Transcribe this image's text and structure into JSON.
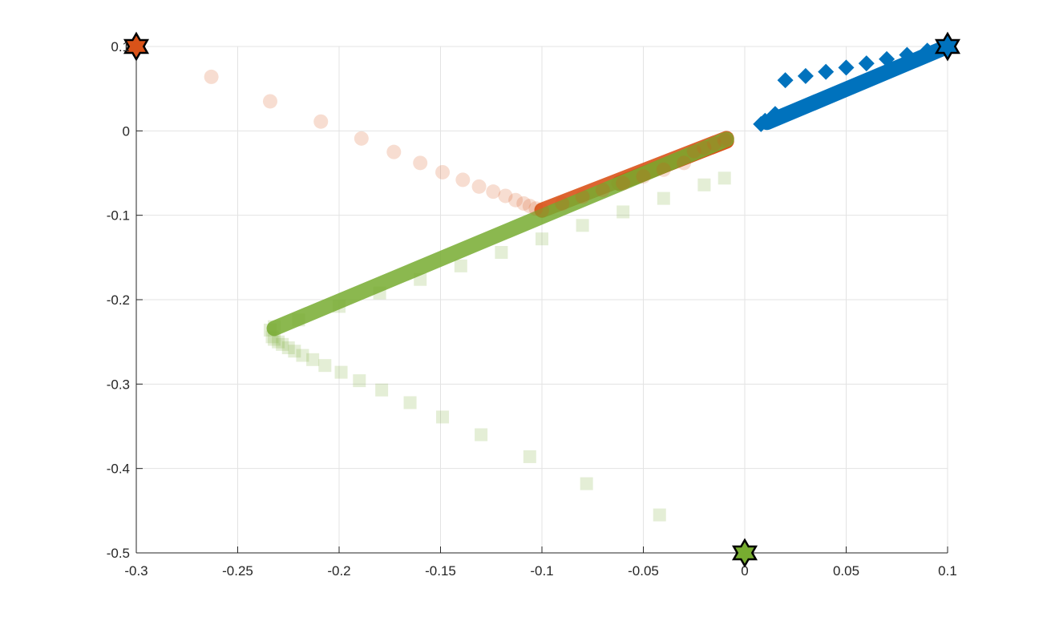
{
  "chart_data": {
    "type": "scatter",
    "title": "",
    "xlabel": "",
    "ylabel": "",
    "xlim": [
      -0.3,
      0.1
    ],
    "ylim": [
      -0.5,
      0.1
    ],
    "grid": true,
    "xticks": [
      -0.3,
      -0.25,
      -0.2,
      -0.15,
      -0.1,
      -0.05,
      0,
      0.05,
      0.1
    ],
    "yticks": [
      -0.5,
      -0.4,
      -0.3,
      -0.2,
      -0.1,
      0,
      0.1
    ],
    "xtick_labels": [
      "-0.3",
      "-0.25",
      "-0.2",
      "-0.15",
      "-0.1",
      "-0.05",
      "0",
      "0.05",
      "0.1"
    ],
    "ytick_labels": [
      "-0.5",
      "-0.4",
      "-0.3",
      "-0.2",
      "-0.1",
      "0",
      "0.1"
    ],
    "series": [
      {
        "color": "#0072BD",
        "marker": "diamond",
        "alpha": 1.0,
        "start_marker": "hexagram",
        "x": [
          0.1,
          0.09,
          0.08,
          0.07,
          0.06,
          0.05,
          0.04,
          0.03,
          0.02,
          0.015,
          0.01,
          0.008
        ],
        "y": [
          0.1,
          0.095,
          0.09,
          0.085,
          0.08,
          0.075,
          0.07,
          0.065,
          0.06,
          0.02,
          0.012,
          0.008
        ]
      },
      {
        "color": "#D95319",
        "marker": "circle",
        "alpha": 0.2,
        "start_marker": "hexagram",
        "x": [
          -0.3,
          -0.263,
          -0.234,
          -0.209,
          -0.189,
          -0.173,
          -0.16,
          -0.149,
          -0.139,
          -0.131,
          -0.124,
          -0.118,
          -0.113,
          -0.109,
          -0.106,
          -0.103,
          -0.1,
          -0.09,
          -0.08,
          -0.07,
          -0.06,
          -0.05,
          -0.04,
          -0.03,
          -0.025,
          -0.02,
          -0.015,
          -0.01,
          -0.009
        ],
        "y": [
          0.1,
          0.064,
          0.035,
          0.011,
          -0.009,
          -0.025,
          -0.038,
          -0.049,
          -0.058,
          -0.066,
          -0.072,
          -0.077,
          -0.082,
          -0.086,
          -0.089,
          -0.092,
          -0.094,
          -0.086,
          -0.078,
          -0.07,
          -0.062,
          -0.054,
          -0.046,
          -0.038,
          -0.024,
          -0.02,
          -0.015,
          -0.011,
          -0.009
        ]
      },
      {
        "color": "#77AC30",
        "marker": "square",
        "alpha": 0.2,
        "start_marker": "hexagram",
        "x": [
          0,
          -0.042,
          -0.078,
          -0.106,
          -0.13,
          -0.149,
          -0.165,
          -0.179,
          -0.19,
          -0.199,
          -0.207,
          -0.213,
          -0.218,
          -0.222,
          -0.225,
          -0.228,
          -0.23,
          -0.232,
          -0.233,
          -0.234,
          -0.232,
          -0.22,
          -0.2,
          -0.18,
          -0.16,
          -0.14,
          -0.12,
          -0.1,
          -0.08,
          -0.06,
          -0.04,
          -0.02,
          -0.01,
          -0.009
        ],
        "y": [
          -0.5,
          -0.455,
          -0.418,
          -0.386,
          -0.36,
          -0.339,
          -0.322,
          -0.307,
          -0.296,
          -0.286,
          -0.278,
          -0.271,
          -0.266,
          -0.261,
          -0.257,
          -0.253,
          -0.25,
          -0.247,
          -0.244,
          -0.236,
          -0.232,
          -0.224,
          -0.208,
          -0.192,
          -0.176,
          -0.16,
          -0.144,
          -0.128,
          -0.112,
          -0.096,
          -0.08,
          -0.064,
          -0.056,
          -0.01
        ]
      }
    ],
    "trails": [
      {
        "color": "#0072BD",
        "alpha": 1.0,
        "x": [
          0.1,
          0.011
        ],
        "y": [
          0.1,
          0.01
        ]
      },
      {
        "color": "#D95319",
        "alpha": 0.9,
        "x": [
          -0.1,
          -0.009
        ],
        "y": [
          -0.094,
          -0.009
        ]
      },
      {
        "color": "#D95319",
        "alpha": 1.0,
        "x": [
          -0.062,
          -0.009
        ],
        "y": [
          -0.062,
          -0.012
        ]
      },
      {
        "color": "#77AC30",
        "alpha": 0.85,
        "x": [
          -0.232,
          -0.009
        ],
        "y": [
          -0.234,
          -0.01
        ]
      }
    ]
  }
}
